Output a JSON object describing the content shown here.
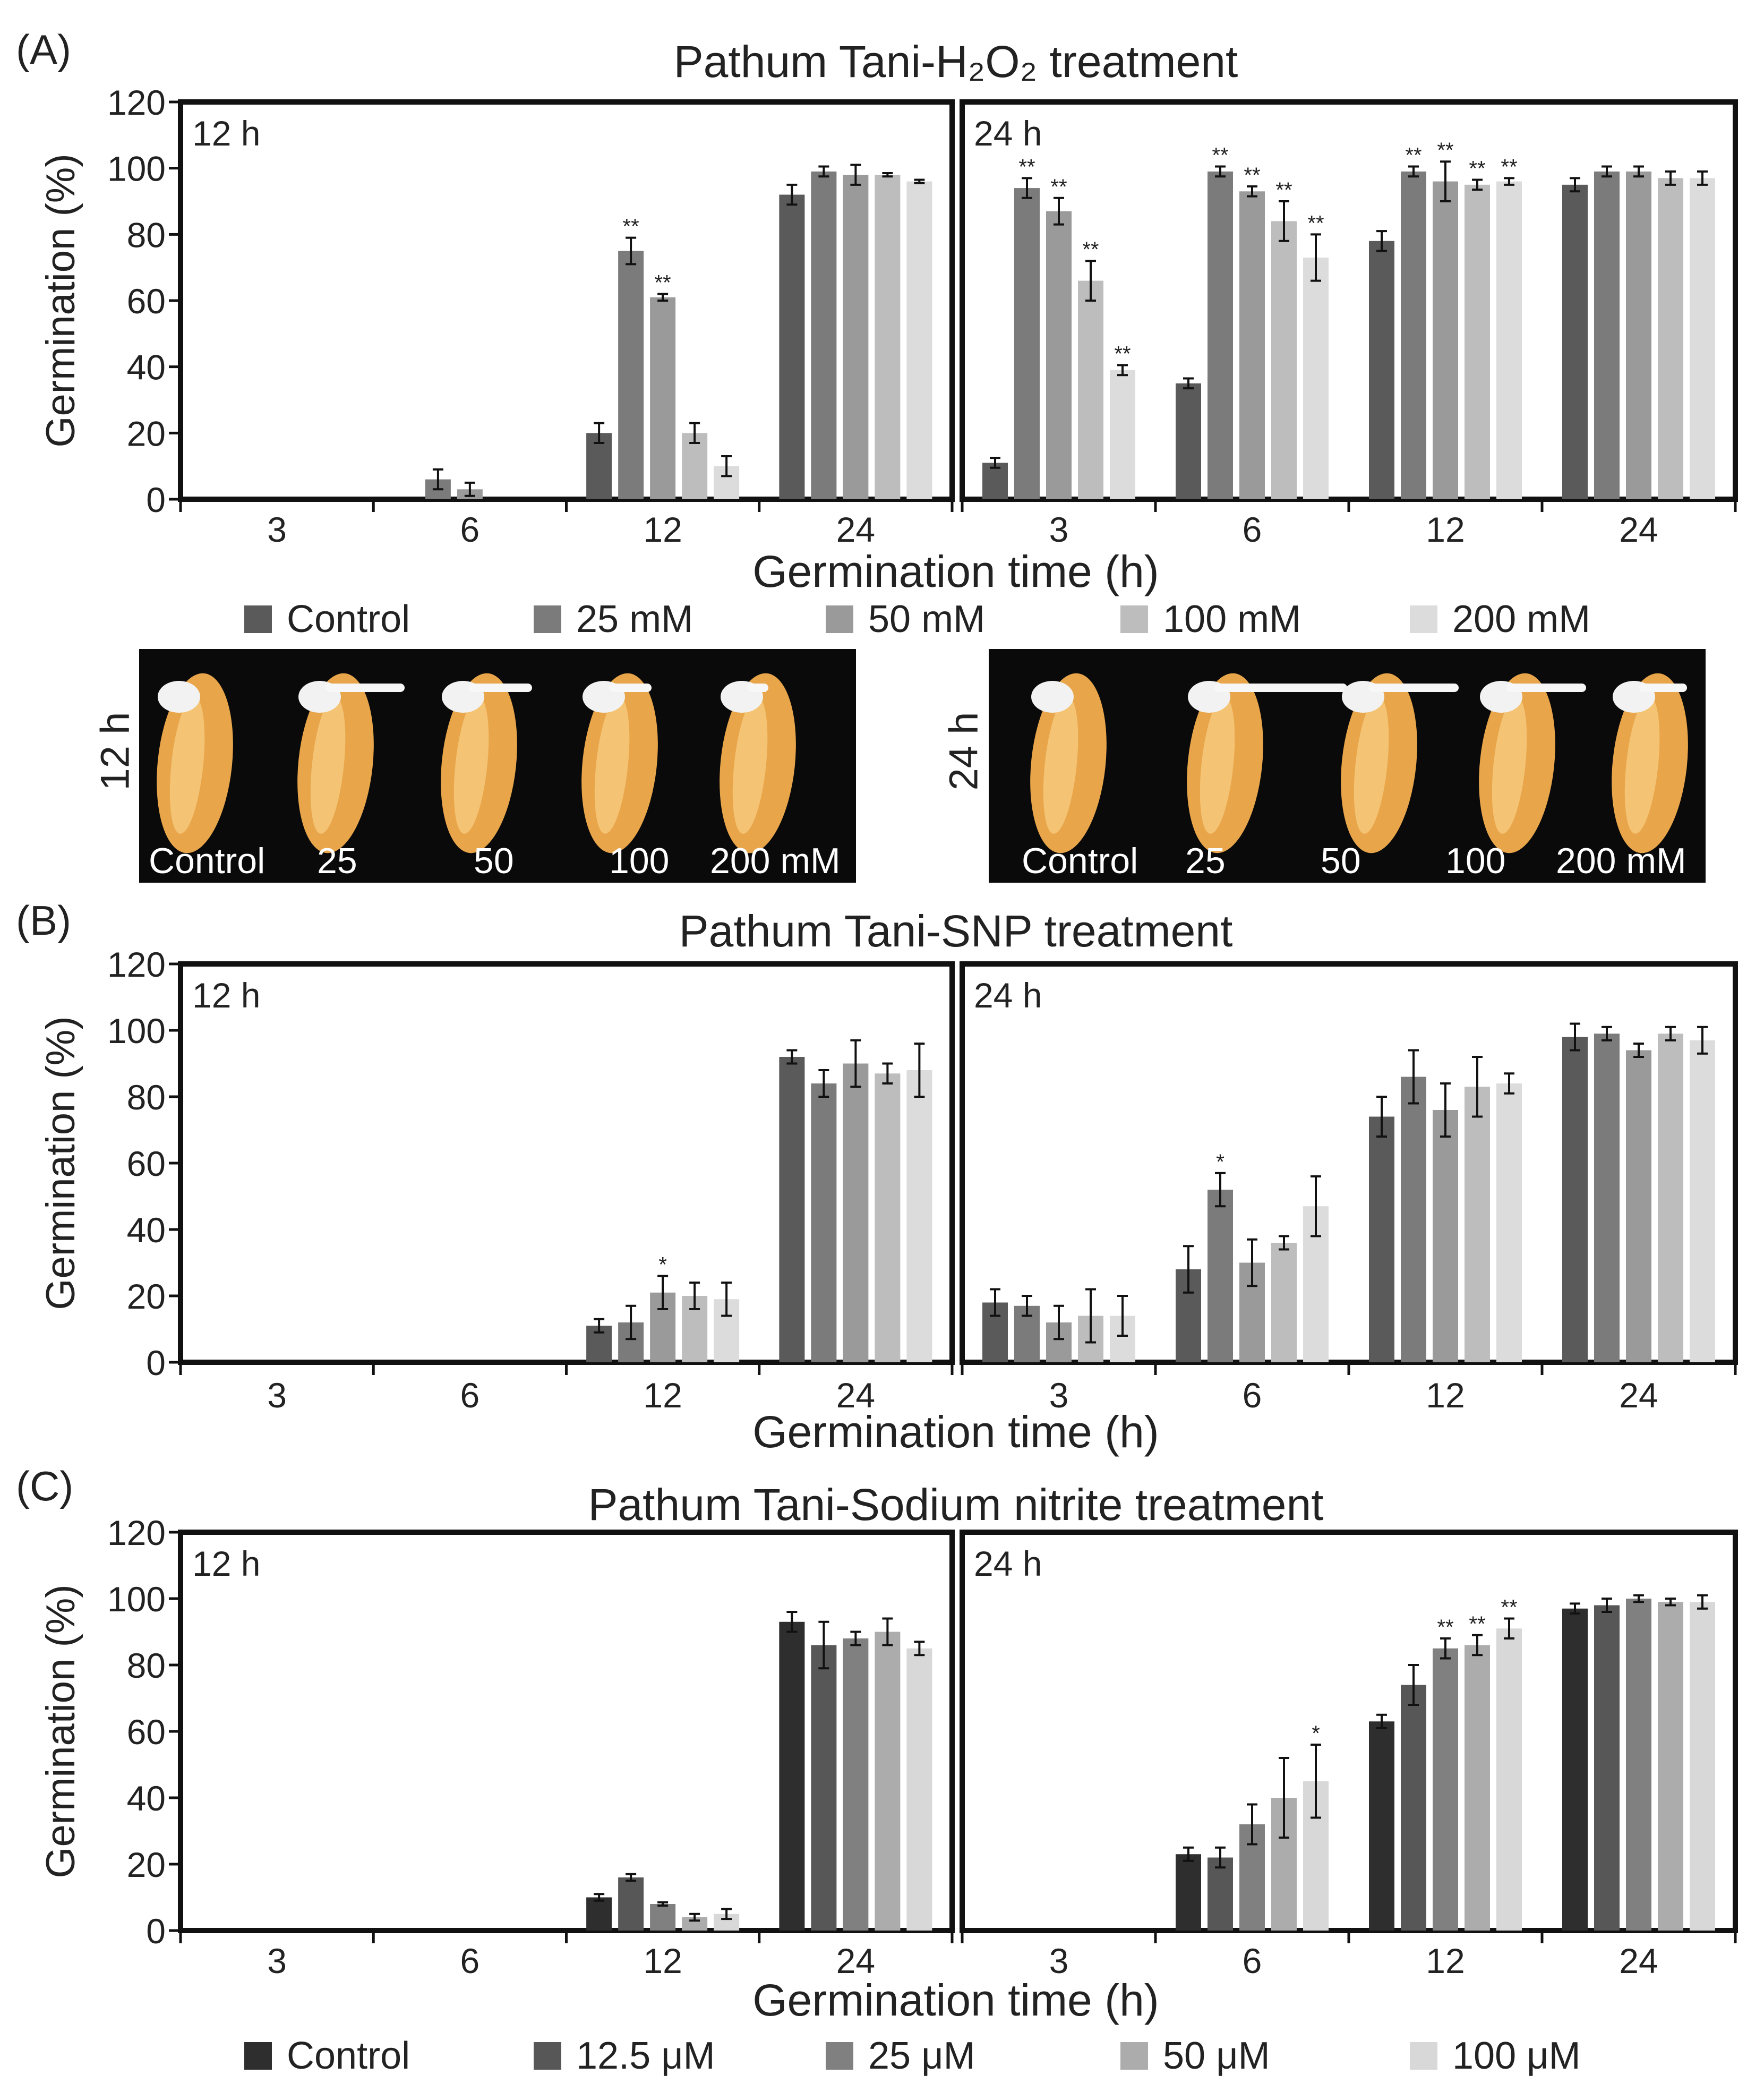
{
  "figure": {
    "panel_a": {
      "letter": "(A)",
      "title": "Pathum Tani-H₂O₂ treatment",
      "legend": [
        "Control",
        "25 mM",
        "50  mM",
        "100 mM",
        "200 mM"
      ],
      "photo_12h": {
        "time_label": "12 h",
        "labels": [
          "Control",
          "25",
          "50",
          "100",
          "200 mM"
        ]
      },
      "photo_24h": {
        "time_label": "24 h",
        "labels": [
          "Control",
          "25",
          "50",
          "100",
          "200 mM"
        ]
      }
    },
    "panel_b": {
      "letter": "(B)",
      "title": "Pathum Tani-SNP treatment"
    },
    "panel_c": {
      "letter": "(C)",
      "title": "Pathum Tani-Sodium nitrite treatment",
      "legend": [
        "Control",
        "12.5 μM",
        "25  μM",
        "50 μM",
        "100 μM"
      ]
    }
  },
  "colors": {
    "a": [
      "#5a5a5a",
      "#7b7b7b",
      "#9a9a9a",
      "#bdbdbd",
      "#dcdcdc"
    ],
    "b": [
      "#5a5a5a",
      "#7b7b7b",
      "#9a9a9a",
      "#bdbdbd",
      "#dcdcdc"
    ],
    "c": [
      "#2e2e2e",
      "#575757",
      "#808080",
      "#acacac",
      "#d8d8d8"
    ]
  },
  "chart_data": [
    {
      "type": "bar",
      "id": "A",
      "title": "Pathum Tani-H₂O₂ treatment",
      "ylabel": "Germination  (%)",
      "xlabel": "Germination time (h)",
      "ylim": [
        0,
        120
      ],
      "yticks": [
        0,
        20,
        40,
        60,
        80,
        100,
        120
      ],
      "series_names": [
        "Control",
        "25 mM",
        "50  mM",
        "100 mM",
        "200 mM"
      ],
      "subplots": [
        {
          "label": "12 h",
          "categories": [
            "3",
            "6",
            "12",
            "24"
          ],
          "values": [
            [
              0,
              0,
              0,
              0,
              0
            ],
            [
              0,
              6,
              3,
              0,
              0
            ],
            [
              20,
              75,
              61,
              20,
              10
            ],
            [
              92,
              99,
              98,
              98,
              96
            ]
          ],
          "errors": [
            [
              0,
              0,
              0,
              0,
              0
            ],
            [
              0,
              3,
              2,
              0,
              0
            ],
            [
              3,
              4,
              1,
              3,
              3
            ],
            [
              3,
              1.5,
              3,
              0.5,
              0.5
            ]
          ],
          "marks": [
            [
              "",
              "",
              "",
              "",
              ""
            ],
            [
              "",
              "",
              "",
              "",
              ""
            ],
            [
              "",
              "**",
              "**",
              "",
              ""
            ],
            [
              "",
              "",
              "",
              "",
              ""
            ]
          ]
        },
        {
          "label": "24 h",
          "categories": [
            "3",
            "6",
            "12",
            "24"
          ],
          "values": [
            [
              11,
              94,
              87,
              66,
              39
            ],
            [
              35,
              99,
              93,
              84,
              73
            ],
            [
              78,
              99,
              96,
              95,
              96
            ],
            [
              95,
              99,
              99,
              97,
              97
            ]
          ],
          "errors": [
            [
              1.5,
              3,
              4,
              6,
              1.5
            ],
            [
              1.5,
              1.5,
              1.5,
              6,
              7
            ],
            [
              3,
              1.5,
              6,
              1.5,
              1
            ],
            [
              2,
              1.5,
              1.5,
              2,
              2
            ]
          ],
          "marks": [
            [
              "",
              "**",
              "**",
              "**",
              "**"
            ],
            [
              "",
              "**",
              "**",
              "**",
              "**"
            ],
            [
              "",
              "**",
              "**",
              "**",
              "**"
            ],
            [
              "",
              "",
              "",
              "",
              ""
            ]
          ]
        }
      ]
    },
    {
      "type": "bar",
      "id": "B",
      "title": "Pathum Tani-SNP treatment",
      "ylabel": "Germination (%)",
      "xlabel": "Germination time (h)",
      "ylim": [
        0,
        120
      ],
      "yticks": [
        0,
        20,
        40,
        60,
        80,
        100,
        120
      ],
      "subplots": [
        {
          "label": "12 h",
          "categories": [
            "3",
            "6",
            "12",
            "24"
          ],
          "values": [
            [
              0,
              0,
              0,
              0,
              0
            ],
            [
              0,
              0,
              0,
              0,
              0
            ],
            [
              11,
              12,
              21,
              20,
              19
            ],
            [
              92,
              84,
              90,
              87,
              88
            ]
          ],
          "errors": [
            [
              0,
              0,
              0,
              0,
              0
            ],
            [
              0,
              0,
              0,
              0,
              0
            ],
            [
              2,
              5,
              5,
              4,
              5
            ],
            [
              2,
              4,
              7,
              3,
              8
            ]
          ],
          "marks": [
            [
              "",
              "",
              "",
              "",
              ""
            ],
            [
              "",
              "",
              "",
              "",
              ""
            ],
            [
              "",
              "",
              "*",
              "",
              ""
            ],
            [
              "",
              "",
              "",
              "",
              ""
            ]
          ]
        },
        {
          "label": "24 h",
          "categories": [
            "3",
            "6",
            "12",
            "24"
          ],
          "values": [
            [
              18,
              17,
              12,
              14,
              14
            ],
            [
              28,
              52,
              30,
              36,
              47
            ],
            [
              74,
              86,
              76,
              83,
              84
            ],
            [
              98,
              99,
              94,
              99,
              97
            ]
          ],
          "errors": [
            [
              4,
              3,
              5,
              8,
              6
            ],
            [
              7,
              5,
              7,
              2,
              9
            ],
            [
              6,
              8,
              8,
              9,
              3
            ],
            [
              4,
              2,
              2,
              2,
              4
            ]
          ],
          "marks": [
            [
              "",
              "",
              "",
              "",
              ""
            ],
            [
              "",
              "*",
              "",
              "",
              ""
            ],
            [
              "",
              "",
              "",
              "",
              ""
            ],
            [
              "",
              "",
              "",
              "",
              ""
            ]
          ]
        }
      ]
    },
    {
      "type": "bar",
      "id": "C",
      "title": "Pathum Tani-Sodium nitrite treatment",
      "ylabel": "Germination (%)",
      "xlabel": "Germination time (h)",
      "ylim": [
        0,
        120
      ],
      "yticks": [
        0,
        20,
        40,
        60,
        80,
        100,
        120
      ],
      "series_names": [
        "Control",
        "12.5 μM",
        "25  μM",
        "50 μM",
        "100 μM"
      ],
      "subplots": [
        {
          "label": "12 h",
          "categories": [
            "3",
            "6",
            "12",
            "24"
          ],
          "values": [
            [
              0,
              0,
              0,
              0,
              0
            ],
            [
              0,
              0,
              0,
              0,
              0
            ],
            [
              10,
              16,
              8,
              4,
              5
            ],
            [
              93,
              86,
              88,
              90,
              85
            ]
          ],
          "errors": [
            [
              0,
              0,
              0,
              0,
              0
            ],
            [
              0,
              0,
              0,
              0,
              0
            ],
            [
              1,
              1,
              0.5,
              1,
              1.5
            ],
            [
              3,
              7,
              2,
              4,
              2
            ]
          ],
          "marks": [
            [
              "",
              "",
              "",
              "",
              ""
            ],
            [
              "",
              "",
              "",
              "",
              ""
            ],
            [
              "",
              "",
              "",
              "",
              ""
            ],
            [
              "",
              "",
              "",
              "",
              ""
            ]
          ]
        },
        {
          "label": "24 h",
          "categories": [
            "3",
            "6",
            "12",
            "24"
          ],
          "values": [
            [
              0,
              0,
              0,
              0,
              0
            ],
            [
              23,
              22,
              32,
              40,
              45
            ],
            [
              63,
              74,
              85,
              86,
              91
            ],
            [
              97,
              98,
              100,
              99,
              99
            ]
          ],
          "errors": [
            [
              0,
              0,
              0,
              0,
              0
            ],
            [
              2,
              3,
              6,
              12,
              11
            ],
            [
              2,
              6,
              3,
              3,
              3
            ],
            [
              1.5,
              2,
              1,
              1,
              2
            ]
          ],
          "marks": [
            [
              "",
              "",
              "",
              "",
              ""
            ],
            [
              "",
              "",
              "",
              "",
              "*"
            ],
            [
              "",
              "",
              "**",
              "**",
              "**"
            ],
            [
              "",
              "",
              "",
              "",
              ""
            ]
          ]
        }
      ]
    }
  ]
}
